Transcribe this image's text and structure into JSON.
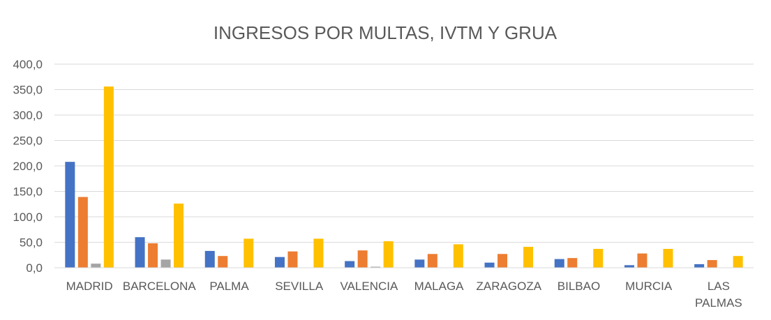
{
  "chart_data": {
    "type": "bar",
    "title": "INGRESOS POR MULTAS, IVTM Y GRUA",
    "categories": [
      [
        "MADRID"
      ],
      [
        "BARCELONA"
      ],
      [
        "PALMA"
      ],
      [
        "SEVILLA"
      ],
      [
        "VALENCIA"
      ],
      [
        "MALAGA"
      ],
      [
        "ZARAGOZA"
      ],
      [
        "BILBAO"
      ],
      [
        "MURCIA"
      ],
      [
        "LAS",
        "PALMAS"
      ]
    ],
    "series": [
      {
        "color": "#4472C4",
        "values": [
          208,
          60,
          33,
          21,
          13,
          16,
          10,
          17,
          5,
          7
        ]
      },
      {
        "color": "#ED7D31",
        "values": [
          139,
          48,
          23,
          32,
          34,
          27,
          27,
          19,
          28,
          15
        ]
      },
      {
        "color": "#A5A5A5",
        "values": [
          8,
          16,
          0,
          0,
          2,
          0,
          0,
          0,
          0,
          0
        ]
      },
      {
        "color": "#FFC000",
        "values": [
          356,
          126,
          57,
          57,
          52,
          46,
          41,
          37,
          37,
          23
        ]
      }
    ],
    "y_ticks": [
      "0,0",
      "50,0",
      "100,0",
      "150,0",
      "200,0",
      "250,0",
      "300,0",
      "350,0",
      "400,0"
    ],
    "ylim": [
      0,
      400
    ],
    "xlabel": "",
    "ylabel": "",
    "grid": true,
    "legend": "none"
  }
}
